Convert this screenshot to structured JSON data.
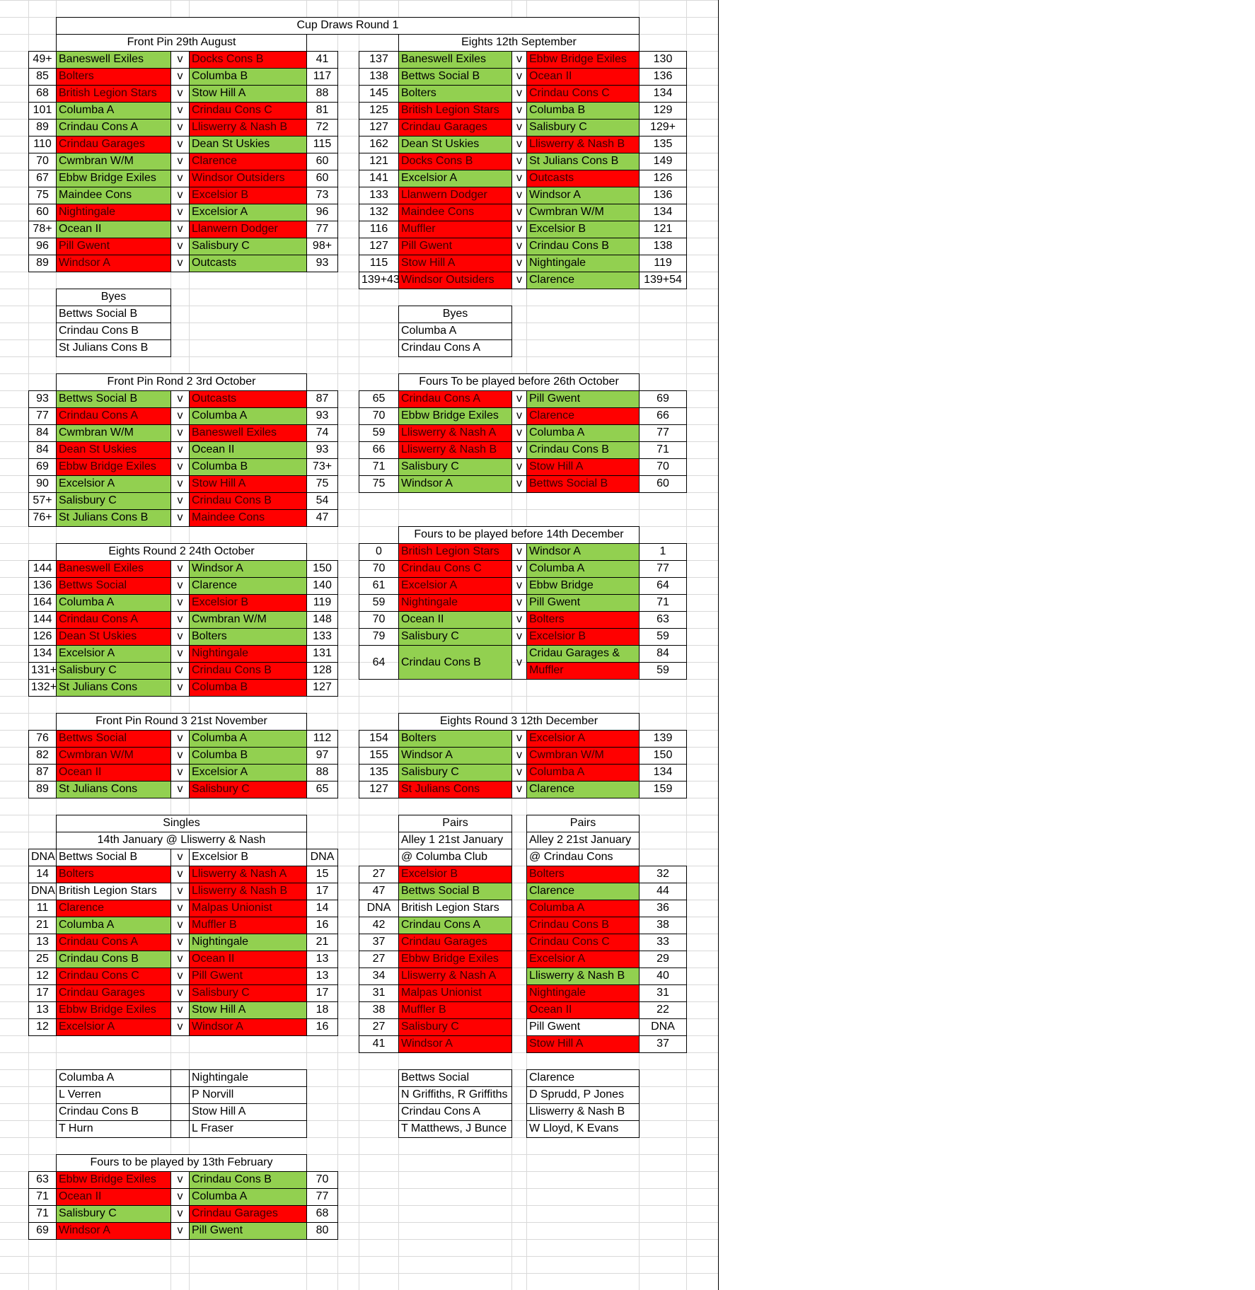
{
  "round1_title": "Cup Draws Round 1",
  "colors": {
    "win": "#92d050",
    "loss": "#ff0000",
    "grid": "#d9d9d9"
  },
  "vs": "v",
  "fp1": {
    "title": "Front Pin  29th August",
    "rows": [
      {
        "ls": "49+",
        "lt": "Baneswell Exiles",
        "lc": "g",
        "rt": "Docks Cons B",
        "rc": "r",
        "rs": "41"
      },
      {
        "ls": "85",
        "lt": "Bolters",
        "lc": "r",
        "rt": "Columba B",
        "rc": "g",
        "rs": "117"
      },
      {
        "ls": "68",
        "lt": "British Legion Stars",
        "lc": "r",
        "rt": "Stow Hill A",
        "rc": "g",
        "rs": "88"
      },
      {
        "ls": "101",
        "lt": "Columba A",
        "lc": "g",
        "rt": "Crindau Cons C",
        "rc": "r",
        "rs": "81"
      },
      {
        "ls": "89",
        "lt": "Crindau Cons A",
        "lc": "g",
        "rt": "Lliswerry & Nash B",
        "rc": "r",
        "rs": "72"
      },
      {
        "ls": "110",
        "lt": "Crindau Garages",
        "lc": "r",
        "rt": "Dean St Uskies",
        "rc": "g",
        "rs": "115"
      },
      {
        "ls": "70",
        "lt": "Cwmbran W/M",
        "lc": "g",
        "rt": "Clarence",
        "rc": "r",
        "rs": "60"
      },
      {
        "ls": "67",
        "lt": "Ebbw Bridge Exiles",
        "lc": "g",
        "rt": "Windsor Outsiders",
        "rc": "r",
        "rs": "60"
      },
      {
        "ls": "75",
        "lt": "Maindee Cons",
        "lc": "g",
        "rt": "Excelsior B",
        "rc": "r",
        "rs": "73"
      },
      {
        "ls": "60",
        "lt": "Nightingale",
        "lc": "r",
        "rt": "Excelsior A",
        "rc": "g",
        "rs": "96"
      },
      {
        "ls": "78+",
        "lt": "Ocean II",
        "lc": "g",
        "rt": "Llanwern Dodger",
        "rc": "r",
        "rs": "77"
      },
      {
        "ls": "96",
        "lt": "Pill Gwent",
        "lc": "r",
        "rt": "Salisbury C",
        "rc": "g",
        "rs": "98+"
      },
      {
        "ls": "89",
        "lt": "Windsor A",
        "lc": "r",
        "rt": "Outcasts",
        "rc": "g",
        "rs": "93"
      }
    ]
  },
  "byes1": {
    "title": "Byes",
    "items": [
      "Bettws Social B",
      "Crindau Cons B",
      "St Julians Cons B"
    ]
  },
  "e1": {
    "title": "Eights 12th September",
    "rows": [
      {
        "ls": "137",
        "lt": "Baneswell Exiles",
        "lc": "g",
        "rt": "Ebbw Bridge Exiles",
        "rc": "r",
        "rs": "130"
      },
      {
        "ls": "138",
        "lt": "Bettws Social B",
        "lc": "g",
        "rt": "Ocean II",
        "rc": "r",
        "rs": "136"
      },
      {
        "ls": "145",
        "lt": "Bolters",
        "lc": "g",
        "rt": "Crindau Cons C",
        "rc": "r",
        "rs": "134"
      },
      {
        "ls": "125",
        "lt": "British Legion Stars",
        "lc": "r",
        "rt": "Columba B",
        "rc": "g",
        "rs": "129"
      },
      {
        "ls": "127",
        "lt": "Crindau Garages",
        "lc": "r",
        "rt": "Salisbury C",
        "rc": "g",
        "rs": "129+"
      },
      {
        "ls": "162",
        "lt": "Dean St Uskies",
        "lc": "g",
        "rt": "Lliswerry & Nash B",
        "rc": "r",
        "rs": "135"
      },
      {
        "ls": "121",
        "lt": "Docks Cons B",
        "lc": "r",
        "rt": "St Julians Cons B",
        "rc": "g",
        "rs": "149"
      },
      {
        "ls": "141",
        "lt": "Excelsior A",
        "lc": "g",
        "rt": "Outcasts",
        "rc": "r",
        "rs": "126"
      },
      {
        "ls": "133",
        "lt": "Llanwern Dodger",
        "lc": "r",
        "rt": "Windsor A",
        "rc": "g",
        "rs": "136"
      },
      {
        "ls": "132",
        "lt": "Maindee Cons",
        "lc": "r",
        "rt": "Cwmbran W/M",
        "rc": "g",
        "rs": "134"
      },
      {
        "ls": "116",
        "lt": "Muffler",
        "lc": "r",
        "rt": "Excelsior B",
        "rc": "g",
        "rs": "121"
      },
      {
        "ls": "127",
        "lt": "Pill Gwent",
        "lc": "r",
        "rt": "Crindau Cons B",
        "rc": "g",
        "rs": "138"
      },
      {
        "ls": "115",
        "lt": "Stow Hill A",
        "lc": "r",
        "rt": "Nightingale",
        "rc": "g",
        "rs": "119"
      },
      {
        "ls": "139+43",
        "lt": "Windsor Outsiders",
        "lc": "r",
        "rt": "Clarence",
        "rc": "g",
        "rs": "139+54"
      }
    ]
  },
  "byes2": {
    "title": "Byes",
    "items": [
      "Columba A",
      "Crindau Cons A"
    ]
  },
  "fp2": {
    "title": "Front Pin Rond 2  3rd October",
    "rows": [
      {
        "ls": "93",
        "lt": "Bettws Social B",
        "lc": "g",
        "rt": "Outcasts",
        "rc": "r",
        "rs": "87"
      },
      {
        "ls": "77",
        "lt": "Crindau Cons A",
        "lc": "r",
        "rt": "Columba A",
        "rc": "g",
        "rs": "93"
      },
      {
        "ls": "84",
        "lt": "Cwmbran W/M",
        "lc": "g",
        "rt": "Baneswell Exiles",
        "rc": "r",
        "rs": "74"
      },
      {
        "ls": "84",
        "lt": "Dean St Uskies",
        "lc": "r",
        "rt": "Ocean II",
        "rc": "g",
        "rs": "93"
      },
      {
        "ls": "69",
        "lt": "Ebbw Bridge Exiles",
        "lc": "r",
        "rt": "Columba B",
        "rc": "g",
        "rs": "73+"
      },
      {
        "ls": "90",
        "lt": "Excelsior A",
        "lc": "g",
        "rt": "Stow Hill A",
        "rc": "r",
        "rs": "75"
      },
      {
        "ls": "57+",
        "lt": "Salisbury C",
        "lc": "g",
        "rt": "Crindau Cons B",
        "rc": "r",
        "rs": "54"
      },
      {
        "ls": "76+",
        "lt": "St Julians Cons B",
        "lc": "g",
        "rt": "Maindee Cons",
        "rc": "r",
        "rs": "47"
      }
    ]
  },
  "f1": {
    "title": "Fours To be played before 26th October",
    "rows": [
      {
        "ls": "65",
        "lt": "Crindau Cons A",
        "lc": "r",
        "rt": "Pill Gwent",
        "rc": "g",
        "rs": "69"
      },
      {
        "ls": "70",
        "lt": "Ebbw Bridge Exiles",
        "lc": "g",
        "rt": "Clarence",
        "rc": "r",
        "rs": "66"
      },
      {
        "ls": "59",
        "lt": "Lliswerry & Nash A",
        "lc": "r",
        "rt": "Columba A",
        "rc": "g",
        "rs": "77"
      },
      {
        "ls": "66",
        "lt": "Lliswerry & Nash B",
        "lc": "r",
        "rt": "Crindau Cons B",
        "rc": "g",
        "rs": "71"
      },
      {
        "ls": "71",
        "lt": "Salisbury C",
        "lc": "g",
        "rt": "Stow Hill A",
        "rc": "r",
        "rs": "70"
      },
      {
        "ls": "75",
        "lt": "Windsor A",
        "lc": "g",
        "rt": "Bettws Social B",
        "rc": "r",
        "rs": "60"
      }
    ]
  },
  "e2": {
    "title": "Eights Round 2 24th October",
    "rows": [
      {
        "ls": "144",
        "lt": "Baneswell Exiles",
        "lc": "r",
        "rt": "Windsor A",
        "rc": "g",
        "rs": "150"
      },
      {
        "ls": "136",
        "lt": "Bettws Social",
        "lc": "r",
        "rt": "Clarence",
        "rc": "g",
        "rs": "140"
      },
      {
        "ls": "164",
        "lt": "Columba A",
        "lc": "g",
        "rt": "Excelsior B",
        "rc": "r",
        "rs": "119"
      },
      {
        "ls": "144",
        "lt": "Crindau Cons A",
        "lc": "r",
        "rt": "Cwmbran W/M",
        "rc": "g",
        "rs": "148"
      },
      {
        "ls": "126",
        "lt": "Dean St Uskies",
        "lc": "r",
        "rt": "Bolters",
        "rc": "g",
        "rs": "133"
      },
      {
        "ls": "134",
        "lt": "Excelsior A",
        "lc": "g",
        "rt": "Nightingale",
        "rc": "r",
        "rs": "131"
      },
      {
        "ls": "131+",
        "lt": "Salisbury C",
        "lc": "g",
        "rt": " Crindau Cons B",
        "rc": "r",
        "rs": "128"
      },
      {
        "ls": "132+",
        "lt": "St Julians Cons",
        "lc": "g",
        "rt": " Columba B",
        "rc": "r",
        "rs": "127"
      }
    ]
  },
  "f2": {
    "title": "Fours to be played before 14th December",
    "rows": [
      {
        "ls": "0",
        "lt": "British Legion Stars",
        "lc": "r",
        "rt": "Windsor A",
        "rc": "g",
        "rs": "1"
      },
      {
        "ls": "70",
        "lt": "Crindau Cons C",
        "lc": "r",
        "rt": "Columba A",
        "rc": "g",
        "rs": "77"
      },
      {
        "ls": "61",
        "lt": "Excelsior A",
        "lc": "r",
        "rt": " Ebbw Bridge",
        "rc": "g",
        "rs": "64"
      },
      {
        "ls": "59",
        "lt": "Nightingale",
        "lc": "r",
        "rt": "Pill Gwent",
        "rc": "g",
        "rs": "71"
      },
      {
        "ls": "70",
        "lt": "Ocean II",
        "lc": "g",
        "rt": "Bolters",
        "rc": "r",
        "rs": "63"
      },
      {
        "ls": "79",
        "lt": "Salisbury C",
        "lc": "g",
        "rt": "Excelsior B",
        "rc": "r",
        "rs": "59"
      }
    ],
    "three_way": {
      "ls": "64",
      "lt": "Crindau Cons B",
      "lc": "g",
      "rt1": "Cridau Garages &",
      "rc1": "g",
      "rs1": "84",
      "rt2": "Muffler",
      "rc2": "r",
      "rs2": "59"
    }
  },
  "fp3": {
    "title": "Front Pin Round 3 21st November",
    "rows": [
      {
        "ls": "76",
        "lt": "Bettws Social",
        "lc": "r",
        "rt": "Columba A",
        "rc": "g",
        "rs": "112"
      },
      {
        "ls": "82",
        "lt": "Cwmbran W/M",
        "lc": "r",
        "rt": " Columba B",
        "rc": "g",
        "rs": "97"
      },
      {
        "ls": "87",
        "lt": "Ocean II",
        "lc": "r",
        "rt": "Excelsior A",
        "rc": "g",
        "rs": "88"
      },
      {
        "ls": "89",
        "lt": "St Julians Cons",
        "lc": "g",
        "rt": "Salisbury C",
        "rc": "r",
        "rs": "65"
      }
    ]
  },
  "e3": {
    "title": "Eights Round 3 12th December",
    "rows": [
      {
        "ls": "154",
        "lt": "Bolters",
        "lc": "g",
        "rt": "Excelsior A",
        "rc": "r",
        "rs": "139"
      },
      {
        "ls": "155",
        "lt": "Windsor A",
        "lc": "g",
        "rt": "Cwmbran W/M",
        "rc": "r",
        "rs": "150"
      },
      {
        "ls": "135",
        "lt": "Salisbury C",
        "lc": "g",
        "rt": "Columba A",
        "rc": "r",
        "rs": "134"
      },
      {
        "ls": "127",
        "lt": "St Julians Cons",
        "lc": "r",
        "rt": "Clarence",
        "rc": "g",
        "rs": "159"
      }
    ]
  },
  "singles": {
    "title": "Singles",
    "subtitle": "14th January  @ Lliswerry & Nash",
    "rows": [
      {
        "ls": "DNA",
        "lt": "Bettws Social B",
        "lc": "w",
        "rt": "Excelsior B",
        "rc": "w",
        "rs": "DNA"
      },
      {
        "ls": "14",
        "lt": "Bolters",
        "lc": "r",
        "rt": "Lliswerry & Nash A",
        "rc": "r",
        "rs": "15"
      },
      {
        "ls": "DNA",
        "lt": "British Legion Stars",
        "lc": "w",
        "rt": "Lliswerry & Nash B",
        "rc": "r",
        "rs": "17"
      },
      {
        "ls": "11",
        "lt": "Clarence",
        "lc": "r",
        "rt": "Malpas Unionist",
        "rc": "r",
        "rs": "14"
      },
      {
        "ls": "21",
        "lt": "Columba A",
        "lc": "g",
        "rt": "Muffler B",
        "rc": "r",
        "rs": "16"
      },
      {
        "ls": "13",
        "lt": "Crindau Cons A",
        "lc": "r",
        "rt": "Nightingale",
        "rc": "g",
        "rs": "21"
      },
      {
        "ls": "25",
        "lt": "Crindau Cons B",
        "lc": "g",
        "rt": "Ocean II",
        "rc": "r",
        "rs": "13"
      },
      {
        "ls": "12",
        "lt": "Crindau Cons C",
        "lc": "r",
        "rt": "Pill Gwent",
        "rc": "r",
        "rs": "13"
      },
      {
        "ls": "17",
        "lt": "Crindau Garages",
        "lc": "r",
        "rt": "Salisbury C",
        "rc": "r",
        "rs": "17"
      },
      {
        "ls": "13",
        "lt": "Ebbw Bridge Exiles",
        "lc": "r",
        "rt": "Stow Hill A",
        "rc": "g",
        "rs": "18"
      },
      {
        "ls": "12",
        "lt": "Excelsior A",
        "lc": "r",
        "rt": "Windsor A",
        "rc": "r",
        "rs": "16"
      }
    ]
  },
  "pairs1": {
    "title": "Pairs",
    "subtitle": "Alley 1 21st January",
    "venue": "@ Columba Club",
    "rows": [
      {
        "s": "27",
        "t": "Excelsior B",
        "c": "r"
      },
      {
        "s": "47",
        "t": "Bettws Social B",
        "c": "g"
      },
      {
        "s": "DNA",
        "t": "British Legion Stars",
        "c": "w"
      },
      {
        "s": "42",
        "t": "Crindau Cons A",
        "c": "g"
      },
      {
        "s": "37",
        "t": "Crindau Garages",
        "c": "r"
      },
      {
        "s": "27",
        "t": "Ebbw Bridge Exiles",
        "c": "r"
      },
      {
        "s": "34",
        "t": "Lliswerry & Nash A",
        "c": "r"
      },
      {
        "s": "31",
        "t": "Malpas Unionist",
        "c": "r"
      },
      {
        "s": "38",
        "t": "Muffler B",
        "c": "r"
      },
      {
        "s": "27",
        "t": "Salisbury C",
        "c": "r"
      },
      {
        "s": "41",
        "t": "Windsor A",
        "c": "r"
      }
    ]
  },
  "pairs2": {
    "title": "Pairs",
    "subtitle": "Alley 2 21st January",
    "venue": "@ Crindau Cons",
    "rows": [
      {
        "s": "32",
        "t": "Bolters",
        "c": "r"
      },
      {
        "s": "44",
        "t": "Clarence",
        "c": "g"
      },
      {
        "s": "36",
        "t": "Columba A",
        "c": "r"
      },
      {
        "s": "38",
        "t": "Crindau Cons B",
        "c": "r"
      },
      {
        "s": "33",
        "t": "Crindau Cons C",
        "c": "r"
      },
      {
        "s": "29",
        "t": "Excelsior A",
        "c": "r"
      },
      {
        "s": "40",
        "t": "Lliswerry & Nash B",
        "c": "g"
      },
      {
        "s": "31",
        "t": "Nightingale",
        "c": "r"
      },
      {
        "s": "22",
        "t": "Ocean II",
        "c": "r"
      },
      {
        "s": "DNA",
        "t": "Pill Gwent",
        "c": "w"
      },
      {
        "s": "37",
        "t": "Stow Hill A",
        "c": "r"
      }
    ]
  },
  "singles_results": {
    "left": [
      "Columba A",
      "L Verren",
      "Crindau Cons B",
      "T Hurn"
    ],
    "right": [
      "Nightingale",
      "P Norvill",
      "Stow Hill A",
      "L Fraser"
    ]
  },
  "pairs_results": {
    "left": [
      "Bettws Social",
      "N Griffiths, R Griffiths",
      "Crindau Cons A",
      "T Matthews, J Bunce"
    ],
    "right": [
      "Clarence",
      "D Sprudd, P Jones",
      "Lliswerry & Nash B",
      "W Lloyd, K Evans"
    ]
  },
  "f3": {
    "title": "Fours to be played by 13th February",
    "rows": [
      {
        "ls": "63",
        "lt": "Ebbw Bridge Exiles",
        "lc": "r",
        "rt": "Crindau Cons B",
        "rc": "g",
        "rs": "70"
      },
      {
        "ls": "71",
        "lt": "Ocean II",
        "lc": "r",
        "rt": "Columba A",
        "rc": "g",
        "rs": "77"
      },
      {
        "ls": "71",
        "lt": "Salisbury C",
        "lc": "g",
        "rt": "Crindau Garages",
        "rc": "r",
        "rs": "68"
      },
      {
        "ls": "69",
        "lt": "Windsor A",
        "lc": "r",
        "rt": "Pill Gwent",
        "rc": "g",
        "rs": "80"
      }
    ]
  }
}
